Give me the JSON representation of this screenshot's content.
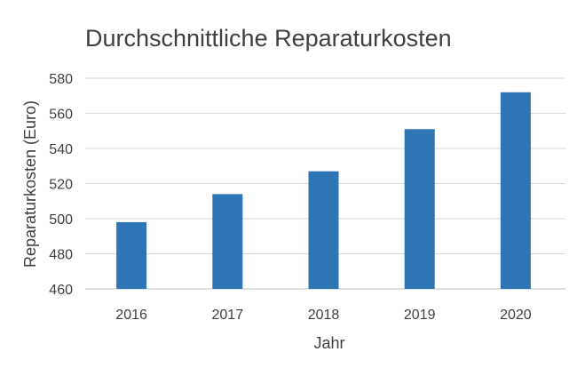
{
  "chart_data": {
    "type": "bar",
    "title": "Durchschnittliche Reparaturkosten",
    "xlabel": "Jahr",
    "ylabel": "Reparaturkosten (Euro)",
    "categories": [
      "2016",
      "2017",
      "2018",
      "2019",
      "2020"
    ],
    "values": [
      498,
      514,
      527,
      551,
      572
    ],
    "ylim": [
      460,
      580
    ],
    "yticks": [
      460,
      480,
      500,
      520,
      540,
      560,
      580
    ],
    "grid": true,
    "legend": "none",
    "bar_color": "#2E75B6"
  }
}
